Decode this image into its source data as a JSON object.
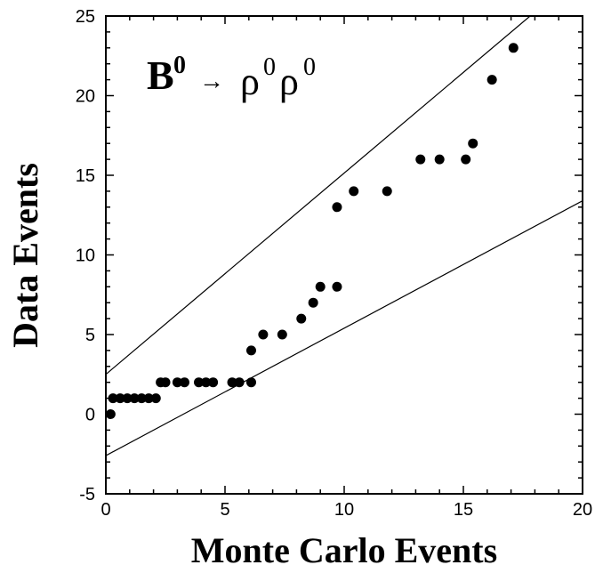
{
  "chart_data": {
    "type": "scatter",
    "xlabel": "Monte Carlo Events",
    "ylabel": "Data Events",
    "xlim": [
      0,
      20
    ],
    "ylim": [
      -5,
      25
    ],
    "xticks": [
      0,
      5,
      10,
      15,
      20
    ],
    "yticks": [
      -5,
      0,
      5,
      10,
      15,
      20,
      25
    ],
    "grid": false,
    "annotation": {
      "particle_b": "B",
      "b_superscript": "0",
      "arrow": "→",
      "rho1": "ρ",
      "rho1_superscript": "0",
      "rho2": "ρ",
      "rho2_superscript": "0"
    },
    "series": [
      {
        "points": [
          [
            0.2,
            0
          ],
          [
            0.3,
            1
          ],
          [
            0.6,
            1
          ],
          [
            0.9,
            1
          ],
          [
            1.2,
            1
          ],
          [
            1.5,
            1
          ],
          [
            1.8,
            1
          ],
          [
            2.1,
            1
          ],
          [
            2.3,
            2
          ],
          [
            2.5,
            2
          ],
          [
            3.0,
            2
          ],
          [
            3.3,
            2
          ],
          [
            3.9,
            2
          ],
          [
            4.2,
            2
          ],
          [
            4.5,
            2
          ],
          [
            5.3,
            2
          ],
          [
            5.6,
            2
          ],
          [
            6.1,
            2
          ],
          [
            6.1,
            4
          ],
          [
            6.6,
            5
          ],
          [
            7.4,
            5
          ],
          [
            8.2,
            6
          ],
          [
            8.7,
            7
          ],
          [
            9.0,
            8
          ],
          [
            9.7,
            8
          ],
          [
            9.7,
            13
          ],
          [
            10.4,
            14
          ],
          [
            11.8,
            14
          ],
          [
            13.2,
            16
          ],
          [
            14.0,
            16
          ],
          [
            15.1,
            16
          ],
          [
            15.4,
            17
          ],
          [
            16.2,
            21
          ],
          [
            17.1,
            23
          ]
        ]
      }
    ],
    "lines": [
      {
        "x": [
          0,
          17.8
        ],
        "y": [
          2.5,
          25
        ]
      },
      {
        "x": [
          0,
          20
        ],
        "y": [
          -2.6,
          13.4
        ]
      }
    ]
  }
}
